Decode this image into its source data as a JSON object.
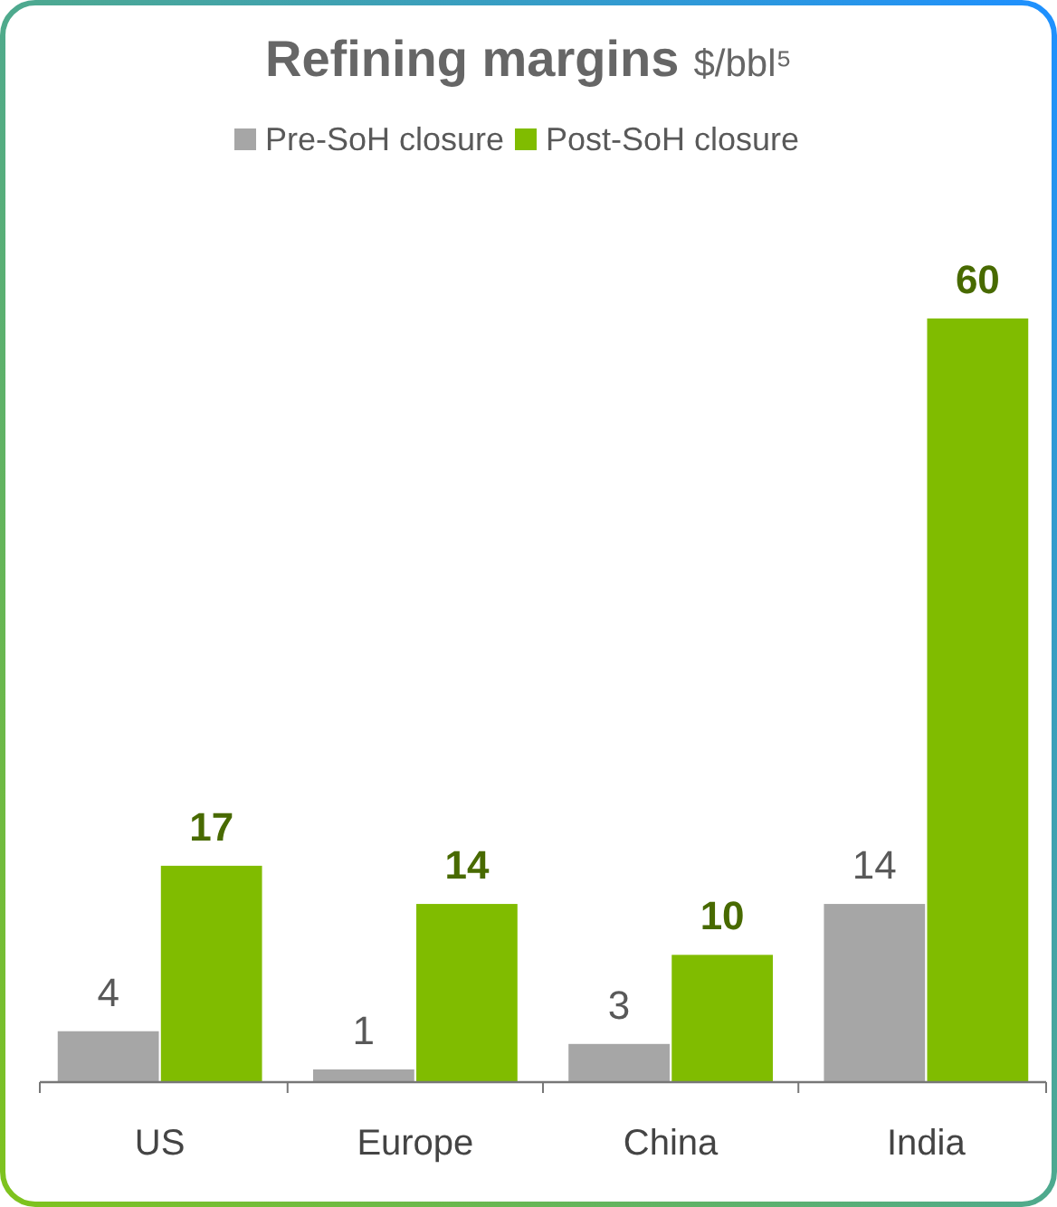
{
  "chart_data": {
    "type": "bar",
    "title": "Refining margins",
    "subtitle": "$/bbl⁵",
    "categories": [
      "US",
      "Europe",
      "China",
      "India"
    ],
    "series": [
      {
        "name": "Pre-SoH closure",
        "color": "#a6a6a6",
        "values": [
          4,
          1,
          3,
          14
        ]
      },
      {
        "name": "Post-SoH closure",
        "color": "#80bc00",
        "values": [
          17,
          14,
          10,
          60
        ]
      }
    ],
    "data_labels": true,
    "legend": "top"
  }
}
